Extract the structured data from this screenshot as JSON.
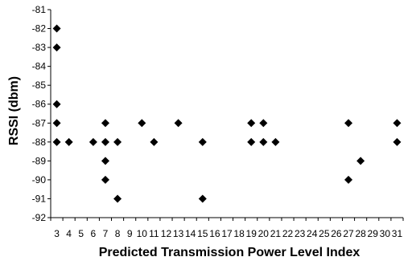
{
  "chart_data": {
    "type": "scatter",
    "title": "",
    "xlabel": "Predicted Transmission Power Level Index",
    "ylabel": "RSSI (dbm)",
    "x_categories": [
      3,
      4,
      5,
      6,
      7,
      8,
      9,
      10,
      11,
      12,
      13,
      14,
      15,
      16,
      17,
      18,
      19,
      20,
      21,
      22,
      23,
      24,
      25,
      26,
      27,
      28,
      29,
      30,
      31
    ],
    "ylim": [
      -92,
      -81
    ],
    "y_ticks": [
      -81,
      -82,
      -83,
      -84,
      -85,
      -86,
      -87,
      -88,
      -89,
      -90,
      -91,
      -92
    ],
    "grid": false,
    "legend": "none",
    "marker": "diamond",
    "marker_color": "#000000",
    "series": [
      {
        "points": [
          {
            "x": 3,
            "y": -82
          },
          {
            "x": 3,
            "y": -83
          },
          {
            "x": 3,
            "y": -86
          },
          {
            "x": 3,
            "y": -87
          },
          {
            "x": 3,
            "y": -88
          },
          {
            "x": 4,
            "y": -88
          },
          {
            "x": 6,
            "y": -88
          },
          {
            "x": 7,
            "y": -87
          },
          {
            "x": 7,
            "y": -88
          },
          {
            "x": 7,
            "y": -89
          },
          {
            "x": 7,
            "y": -90
          },
          {
            "x": 8,
            "y": -88
          },
          {
            "x": 8,
            "y": -91
          },
          {
            "x": 10,
            "y": -87
          },
          {
            "x": 11,
            "y": -88
          },
          {
            "x": 13,
            "y": -87
          },
          {
            "x": 15,
            "y": -88
          },
          {
            "x": 15,
            "y": -91
          },
          {
            "x": 19,
            "y": -87
          },
          {
            "x": 19,
            "y": -88
          },
          {
            "x": 20,
            "y": -87
          },
          {
            "x": 20,
            "y": -88
          },
          {
            "x": 21,
            "y": -88
          },
          {
            "x": 27,
            "y": -87
          },
          {
            "x": 27,
            "y": -90
          },
          {
            "x": 28,
            "y": -89
          },
          {
            "x": 31,
            "y": -87
          },
          {
            "x": 31,
            "y": -88
          }
        ]
      }
    ]
  }
}
